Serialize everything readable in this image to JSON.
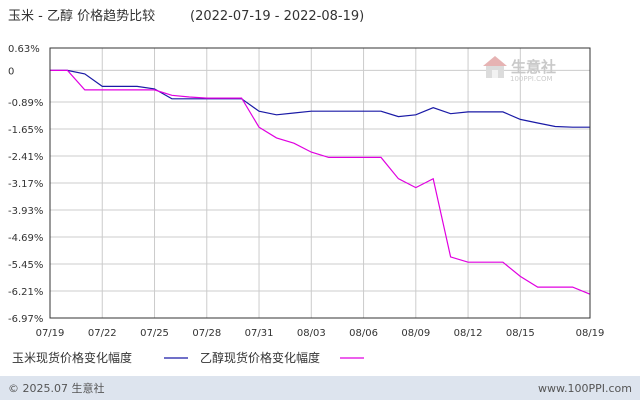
{
  "title": "玉米 - 乙醇 价格趋势比较",
  "date_range": "(2022-07-19 - 2022-08-19)",
  "watermark": {
    "name": "生意社",
    "url": "100PPI.COM"
  },
  "footer": {
    "copyright": "© 2025.07 生意社",
    "site": "www.100PPI.com"
  },
  "colors": {
    "corn": "#1a1aa6",
    "ethanol": "#e000e0",
    "grid": "#cccccc",
    "axis": "#333333",
    "footer_bg": "#dde4ee"
  },
  "chart_data": {
    "type": "line",
    "title": "玉米 - 乙醇 价格趋势比较",
    "x_tick_labels": [
      "07/19",
      "07/22",
      "07/25",
      "07/28",
      "07/31",
      "08/03",
      "08/06",
      "08/09",
      "08/12",
      "08/15",
      "08/19"
    ],
    "y_ticks": [
      "0.63%",
      "0",
      "-0.89%",
      "-1.65%",
      "-2.41%",
      "-3.17%",
      "-3.93%",
      "-4.69%",
      "-5.45%",
      "-6.21%",
      "-6.97%"
    ],
    "y_tick_values": [
      0.63,
      0,
      -0.89,
      -1.65,
      -2.41,
      -3.17,
      -3.93,
      -4.69,
      -5.45,
      -6.21,
      -6.97
    ],
    "ylim": [
      -6.97,
      0.63
    ],
    "grid": true,
    "legend_position": "bottom",
    "series": [
      {
        "name": "玉米现货价格变化幅度",
        "color": "#1a1aa6",
        "points": [
          [
            "07/19",
            0
          ],
          [
            "07/20",
            0
          ],
          [
            "07/21",
            -0.1
          ],
          [
            "07/22",
            -0.45
          ],
          [
            "07/23",
            -0.45
          ],
          [
            "07/24",
            -0.45
          ],
          [
            "07/25",
            -0.52
          ],
          [
            "07/26",
            -0.8
          ],
          [
            "07/27",
            -0.8
          ],
          [
            "07/28",
            -0.8
          ],
          [
            "07/29",
            -0.8
          ],
          [
            "07/30",
            -0.8
          ],
          [
            "07/31",
            -1.15
          ],
          [
            "08/01",
            -1.25
          ],
          [
            "08/02",
            -1.2
          ],
          [
            "08/03",
            -1.15
          ],
          [
            "08/04",
            -1.15
          ],
          [
            "08/05",
            -1.15
          ],
          [
            "08/06",
            -1.15
          ],
          [
            "08/07",
            -1.15
          ],
          [
            "08/08",
            -1.3
          ],
          [
            "08/09",
            -1.25
          ],
          [
            "08/10",
            -1.05
          ],
          [
            "08/11",
            -1.22
          ],
          [
            "08/12",
            -1.17
          ],
          [
            "08/13",
            -1.17
          ],
          [
            "08/14",
            -1.17
          ],
          [
            "08/15",
            -1.38
          ],
          [
            "08/16",
            -1.48
          ],
          [
            "08/17",
            -1.58
          ],
          [
            "08/18",
            -1.6
          ],
          [
            "08/19",
            -1.6
          ]
        ]
      },
      {
        "name": "乙醇现货价格变化幅度",
        "color": "#e000e0",
        "points": [
          [
            "07/19",
            0
          ],
          [
            "07/20",
            0
          ],
          [
            "07/21",
            -0.55
          ],
          [
            "07/22",
            -0.55
          ],
          [
            "07/23",
            -0.55
          ],
          [
            "07/24",
            -0.55
          ],
          [
            "07/25",
            -0.55
          ],
          [
            "07/26",
            -0.7
          ],
          [
            "07/27",
            -0.75
          ],
          [
            "07/28",
            -0.78
          ],
          [
            "07/29",
            -0.78
          ],
          [
            "07/30",
            -0.78
          ],
          [
            "07/31",
            -1.6
          ],
          [
            "08/01",
            -1.9
          ],
          [
            "08/02",
            -2.05
          ],
          [
            "08/03",
            -2.3
          ],
          [
            "08/04",
            -2.45
          ],
          [
            "08/05",
            -2.45
          ],
          [
            "08/06",
            -2.45
          ],
          [
            "08/07",
            -2.45
          ],
          [
            "08/08",
            -3.05
          ],
          [
            "08/09",
            -3.3
          ],
          [
            "08/10",
            -3.05
          ],
          [
            "08/11",
            -5.25
          ],
          [
            "08/12",
            -5.4
          ],
          [
            "08/13",
            -5.4
          ],
          [
            "08/14",
            -5.4
          ],
          [
            "08/15",
            -5.8
          ],
          [
            "08/16",
            -6.1
          ],
          [
            "08/17",
            -6.1
          ],
          [
            "08/18",
            -6.1
          ],
          [
            "08/19",
            -6.3
          ]
        ]
      }
    ]
  }
}
